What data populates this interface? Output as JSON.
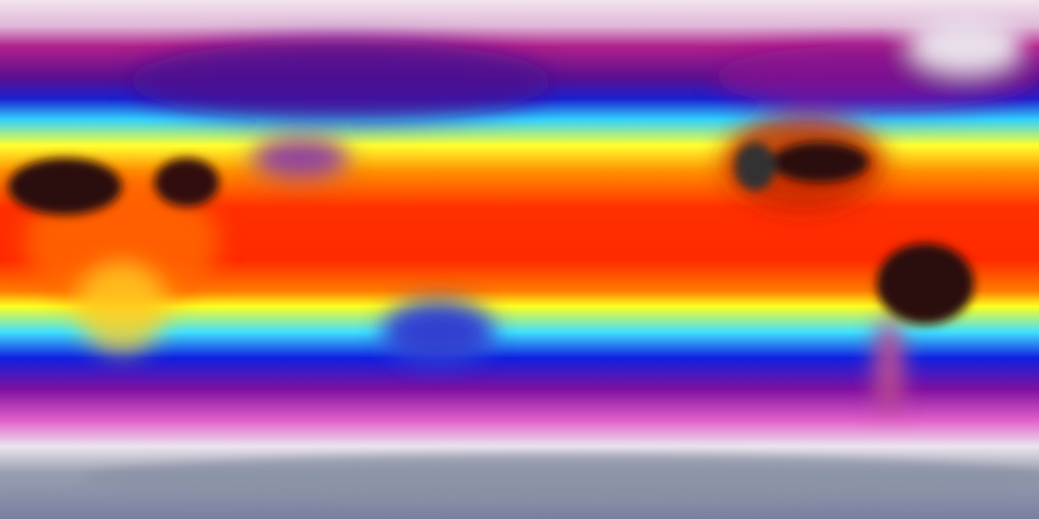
{
  "map": {
    "projection": "equirectangular",
    "palette": {
      "polar": "#eadbe8",
      "cold": "#b0208a",
      "cool": "#1020d0",
      "mild": "#30d0ff",
      "warm": "#ffff20",
      "hot": "#ff2000",
      "extreme": "#2a1010",
      "antarctica": "#8890a4"
    }
  }
}
